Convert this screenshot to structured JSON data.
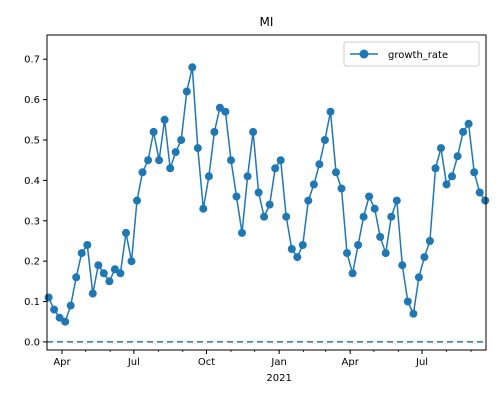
{
  "chart_data": {
    "type": "line",
    "title": "MI",
    "xlabel": "",
    "ylabel": "",
    "legend_position": "top-right",
    "grid": false,
    "xlim": [
      "2020-03-13",
      "2021-09-20"
    ],
    "ylim": [
      -0.02,
      0.76
    ],
    "yticks": [
      0.0,
      0.1,
      0.2,
      0.3,
      0.4,
      0.5,
      0.6,
      0.7
    ],
    "xticks": [
      {
        "date": "2020-04-01",
        "label": "Apr"
      },
      {
        "date": "2020-07-01",
        "label": "Jul"
      },
      {
        "date": "2020-10-01",
        "label": "Oct"
      },
      {
        "date": "2021-01-01",
        "label": "Jan"
      },
      {
        "date": "2021-04-01",
        "label": "Apr"
      },
      {
        "date": "2021-07-01",
        "label": "Jul"
      }
    ],
    "year_label": {
      "date": "2021-01-01",
      "label": "2021"
    },
    "reference_line": {
      "y": 0.0,
      "style": "dashed"
    },
    "colors": {
      "series": "#1f77b4",
      "reference": "#1f77b4"
    },
    "series": [
      {
        "name": "growth_rate",
        "x": [
          "2020-03-15",
          "2020-03-22",
          "2020-03-29",
          "2020-04-05",
          "2020-04-12",
          "2020-04-19",
          "2020-04-26",
          "2020-05-03",
          "2020-05-10",
          "2020-05-17",
          "2020-05-24",
          "2020-05-31",
          "2020-06-07",
          "2020-06-14",
          "2020-06-21",
          "2020-06-28",
          "2020-07-05",
          "2020-07-12",
          "2020-07-19",
          "2020-07-26",
          "2020-08-02",
          "2020-08-09",
          "2020-08-16",
          "2020-08-23",
          "2020-08-30",
          "2020-09-06",
          "2020-09-13",
          "2020-09-20",
          "2020-09-27",
          "2020-10-04",
          "2020-10-11",
          "2020-10-18",
          "2020-10-25",
          "2020-11-01",
          "2020-11-08",
          "2020-11-15",
          "2020-11-22",
          "2020-11-29",
          "2020-12-06",
          "2020-12-13",
          "2020-12-20",
          "2020-12-27",
          "2021-01-03",
          "2021-01-10",
          "2021-01-17",
          "2021-01-24",
          "2021-01-31",
          "2021-02-07",
          "2021-02-14",
          "2021-02-21",
          "2021-02-28",
          "2021-03-07",
          "2021-03-14",
          "2021-03-21",
          "2021-03-28",
          "2021-04-04",
          "2021-04-11",
          "2021-04-18",
          "2021-04-25",
          "2021-05-02",
          "2021-05-09",
          "2021-05-16",
          "2021-05-23",
          "2021-05-30",
          "2021-06-06",
          "2021-06-13",
          "2021-06-20",
          "2021-06-27",
          "2021-07-04",
          "2021-07-11",
          "2021-07-18",
          "2021-07-25",
          "2021-08-01",
          "2021-08-08",
          "2021-08-15",
          "2021-08-22",
          "2021-08-29",
          "2021-09-05",
          "2021-09-12",
          "2021-09-19"
        ],
        "values": [
          0.11,
          0.08,
          0.06,
          0.05,
          0.09,
          0.16,
          0.22,
          0.24,
          0.12,
          0.19,
          0.17,
          0.15,
          0.18,
          0.17,
          0.27,
          0.2,
          0.35,
          0.42,
          0.45,
          0.52,
          0.45,
          0.55,
          0.43,
          0.47,
          0.5,
          0.62,
          0.68,
          0.48,
          0.33,
          0.41,
          0.52,
          0.58,
          0.57,
          0.45,
          0.36,
          0.27,
          0.41,
          0.52,
          0.37,
          0.31,
          0.34,
          0.43,
          0.45,
          0.31,
          0.23,
          0.21,
          0.24,
          0.35,
          0.39,
          0.44,
          0.5,
          0.57,
          0.42,
          0.38,
          0.22,
          0.17,
          0.24,
          0.31,
          0.36,
          0.33,
          0.26,
          0.22,
          0.31,
          0.35,
          0.19,
          0.1,
          0.07,
          0.16,
          0.21,
          0.25,
          0.43,
          0.48,
          0.39,
          0.41,
          0.46,
          0.52,
          0.54,
          0.42,
          0.37,
          0.35
        ]
      }
    ]
  }
}
